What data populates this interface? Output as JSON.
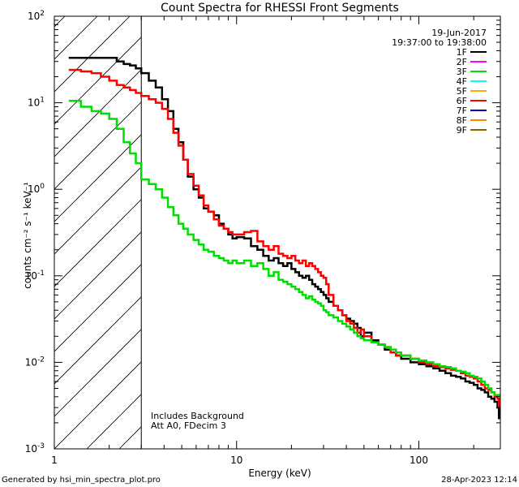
{
  "chart_data": {
    "type": "line",
    "title": "Count Spectra for RHESSI Front Segments",
    "xlabel": "Energy (keV)",
    "ylabel": "counts cm⁻² s⁻¹ keV⁻¹",
    "xscale": "log",
    "yscale": "log",
    "xlim": [
      1,
      280
    ],
    "ylim": [
      0.001,
      100
    ],
    "x_ticks": [
      {
        "value": 1,
        "label": "1"
      },
      {
        "value": 10,
        "label": "10"
      },
      {
        "value": 100,
        "label": "100"
      }
    ],
    "y_ticks": [
      {
        "value": 100,
        "label_base": "10",
        "label_exp": "2"
      },
      {
        "value": 10,
        "label_base": "10",
        "label_exp": "1"
      },
      {
        "value": 1,
        "label_base": "10",
        "label_exp": "0"
      },
      {
        "value": 0.1,
        "label_base": "10",
        "label_exp": "-1"
      },
      {
        "value": 0.01,
        "label_base": "10",
        "label_exp": "-2"
      },
      {
        "value": 0.001,
        "label_base": "10",
        "label_exp": "-3"
      }
    ],
    "date": "19-Jun-2017",
    "time_range": "19:37:00 to 19:38:00",
    "hatch_region": {
      "x_start": 1,
      "x_end": 3
    },
    "attenuator_note": "Includes Background",
    "att_line": "Att A0, FDecim 3",
    "legend_position": "top-right",
    "legend": [
      {
        "label": "1F",
        "color": "#000000"
      },
      {
        "label": "2F",
        "color": "#ff00ff"
      },
      {
        "label": "3F",
        "color": "#00dd00"
      },
      {
        "label": "4F",
        "color": "#00ffff"
      },
      {
        "label": "5F",
        "color": "#ffaa00"
      },
      {
        "label": "6F",
        "color": "#ff0000"
      },
      {
        "label": "7F",
        "color": "#0000cc"
      },
      {
        "label": "8F",
        "color": "#ff8800"
      },
      {
        "label": "9F",
        "color": "#886600"
      }
    ],
    "series": [
      {
        "name": "1F",
        "color": "#000000",
        "points": [
          [
            1.2,
            33
          ],
          [
            1.4,
            33
          ],
          [
            1.6,
            33
          ],
          [
            1.8,
            33
          ],
          [
            2.0,
            33
          ],
          [
            2.2,
            30
          ],
          [
            2.4,
            28
          ],
          [
            2.6,
            27
          ],
          [
            2.8,
            25
          ],
          [
            3.0,
            22
          ],
          [
            3.3,
            18
          ],
          [
            3.6,
            15
          ],
          [
            3.9,
            11
          ],
          [
            4.2,
            8
          ],
          [
            4.5,
            5
          ],
          [
            4.8,
            3.5
          ],
          [
            5.1,
            2.2
          ],
          [
            5.4,
            1.4
          ],
          [
            5.8,
            1.0
          ],
          [
            6.2,
            0.8
          ],
          [
            6.6,
            0.6
          ],
          [
            7.0,
            0.55
          ],
          [
            7.5,
            0.5
          ],
          [
            8.0,
            0.4
          ],
          [
            8.5,
            0.35
          ],
          [
            9.0,
            0.3
          ],
          [
            9.5,
            0.27
          ],
          [
            10,
            0.28
          ],
          [
            11,
            0.27
          ],
          [
            12,
            0.22
          ],
          [
            13,
            0.2
          ],
          [
            14,
            0.17
          ],
          [
            15,
            0.15
          ],
          [
            16,
            0.16
          ],
          [
            17,
            0.14
          ],
          [
            18,
            0.13
          ],
          [
            19,
            0.14
          ],
          [
            20,
            0.12
          ],
          [
            21,
            0.11
          ],
          [
            22,
            0.1
          ],
          [
            23,
            0.095
          ],
          [
            24,
            0.1
          ],
          [
            25,
            0.09
          ],
          [
            26,
            0.08
          ],
          [
            27,
            0.075
          ],
          [
            28,
            0.07
          ],
          [
            29,
            0.065
          ],
          [
            30,
            0.06
          ],
          [
            31,
            0.055
          ],
          [
            32,
            0.05
          ],
          [
            34,
            0.045
          ],
          [
            36,
            0.04
          ],
          [
            38,
            0.035
          ],
          [
            40,
            0.032
          ],
          [
            42,
            0.03
          ],
          [
            44,
            0.028
          ],
          [
            46,
            0.025
          ],
          [
            48,
            0.02
          ],
          [
            50,
            0.022
          ],
          [
            55,
            0.018
          ],
          [
            60,
            0.016
          ],
          [
            65,
            0.014
          ],
          [
            70,
            0.013
          ],
          [
            75,
            0.012
          ],
          [
            80,
            0.011
          ],
          [
            90,
            0.01
          ],
          [
            100,
            0.0095
          ],
          [
            110,
            0.009
          ],
          [
            120,
            0.0085
          ],
          [
            130,
            0.008
          ],
          [
            140,
            0.0075
          ],
          [
            150,
            0.007
          ],
          [
            160,
            0.0068
          ],
          [
            170,
            0.0065
          ],
          [
            180,
            0.006
          ],
          [
            190,
            0.0058
          ],
          [
            200,
            0.0055
          ],
          [
            210,
            0.005
          ],
          [
            220,
            0.0048
          ],
          [
            230,
            0.0045
          ],
          [
            240,
            0.004
          ],
          [
            250,
            0.0038
          ],
          [
            260,
            0.0035
          ],
          [
            270,
            0.003
          ],
          [
            275,
            0.0022
          ]
        ]
      },
      {
        "name": "6F",
        "color": "#ff0000",
        "points": [
          [
            1.2,
            24
          ],
          [
            1.4,
            23
          ],
          [
            1.6,
            22
          ],
          [
            1.8,
            20
          ],
          [
            2.0,
            18
          ],
          [
            2.2,
            16
          ],
          [
            2.4,
            15
          ],
          [
            2.6,
            14
          ],
          [
            2.8,
            13
          ],
          [
            3.0,
            12
          ],
          [
            3.3,
            11
          ],
          [
            3.6,
            10
          ],
          [
            3.9,
            8.5
          ],
          [
            4.2,
            6.5
          ],
          [
            4.5,
            4.5
          ],
          [
            4.8,
            3.2
          ],
          [
            5.1,
            2.2
          ],
          [
            5.4,
            1.5
          ],
          [
            5.8,
            1.1
          ],
          [
            6.2,
            0.85
          ],
          [
            6.6,
            0.65
          ],
          [
            7.0,
            0.55
          ],
          [
            7.5,
            0.45
          ],
          [
            8.0,
            0.38
          ],
          [
            8.5,
            0.35
          ],
          [
            9.0,
            0.32
          ],
          [
            9.5,
            0.3
          ],
          [
            10,
            0.3
          ],
          [
            11,
            0.32
          ],
          [
            12,
            0.33
          ],
          [
            13,
            0.25
          ],
          [
            14,
            0.22
          ],
          [
            15,
            0.2
          ],
          [
            16,
            0.22
          ],
          [
            17,
            0.18
          ],
          [
            18,
            0.17
          ],
          [
            19,
            0.16
          ],
          [
            20,
            0.17
          ],
          [
            21,
            0.15
          ],
          [
            22,
            0.14
          ],
          [
            23,
            0.15
          ],
          [
            24,
            0.13
          ],
          [
            25,
            0.14
          ],
          [
            26,
            0.13
          ],
          [
            27,
            0.12
          ],
          [
            28,
            0.11
          ],
          [
            29,
            0.1
          ],
          [
            30,
            0.095
          ],
          [
            31,
            0.08
          ],
          [
            32,
            0.06
          ],
          [
            34,
            0.045
          ],
          [
            36,
            0.04
          ],
          [
            38,
            0.035
          ],
          [
            40,
            0.03
          ],
          [
            42,
            0.028
          ],
          [
            44,
            0.025
          ],
          [
            46,
            0.022
          ],
          [
            48,
            0.024
          ],
          [
            50,
            0.02
          ],
          [
            55,
            0.017
          ],
          [
            60,
            0.016
          ],
          [
            65,
            0.015
          ],
          [
            70,
            0.013
          ],
          [
            75,
            0.012
          ],
          [
            80,
            0.012
          ],
          [
            90,
            0.011
          ],
          [
            100,
            0.01
          ],
          [
            110,
            0.0095
          ],
          [
            120,
            0.009
          ],
          [
            130,
            0.0088
          ],
          [
            140,
            0.0085
          ],
          [
            150,
            0.0082
          ],
          [
            160,
            0.008
          ],
          [
            170,
            0.0075
          ],
          [
            180,
            0.007
          ],
          [
            190,
            0.0068
          ],
          [
            200,
            0.0065
          ],
          [
            210,
            0.006
          ],
          [
            220,
            0.0055
          ],
          [
            230,
            0.005
          ],
          [
            240,
            0.0048
          ],
          [
            250,
            0.0045
          ],
          [
            260,
            0.004
          ],
          [
            270,
            0.0038
          ],
          [
            275,
            0.003
          ]
        ]
      },
      {
        "name": "3F",
        "color": "#00dd00",
        "points": [
          [
            1.2,
            10.5
          ],
          [
            1.4,
            9
          ],
          [
            1.6,
            8
          ],
          [
            1.8,
            7.5
          ],
          [
            2.0,
            6.5
          ],
          [
            2.2,
            5
          ],
          [
            2.4,
            3.5
          ],
          [
            2.6,
            2.6
          ],
          [
            2.8,
            2.0
          ],
          [
            3.0,
            1.3
          ],
          [
            3.3,
            1.15
          ],
          [
            3.6,
            1.0
          ],
          [
            3.9,
            0.8
          ],
          [
            4.2,
            0.62
          ],
          [
            4.5,
            0.5
          ],
          [
            4.8,
            0.4
          ],
          [
            5.1,
            0.35
          ],
          [
            5.4,
            0.3
          ],
          [
            5.8,
            0.26
          ],
          [
            6.2,
            0.23
          ],
          [
            6.6,
            0.2
          ],
          [
            7.0,
            0.19
          ],
          [
            7.5,
            0.17
          ],
          [
            8.0,
            0.16
          ],
          [
            8.5,
            0.15
          ],
          [
            9.0,
            0.14
          ],
          [
            9.5,
            0.15
          ],
          [
            10,
            0.14
          ],
          [
            11,
            0.15
          ],
          [
            12,
            0.13
          ],
          [
            13,
            0.14
          ],
          [
            14,
            0.12
          ],
          [
            15,
            0.1
          ],
          [
            16,
            0.11
          ],
          [
            17,
            0.09
          ],
          [
            18,
            0.085
          ],
          [
            19,
            0.08
          ],
          [
            20,
            0.075
          ],
          [
            21,
            0.07
          ],
          [
            22,
            0.065
          ],
          [
            23,
            0.06
          ],
          [
            24,
            0.055
          ],
          [
            25,
            0.058
          ],
          [
            26,
            0.053
          ],
          [
            27,
            0.05
          ],
          [
            28,
            0.048
          ],
          [
            29,
            0.045
          ],
          [
            30,
            0.04
          ],
          [
            31,
            0.038
          ],
          [
            32,
            0.035
          ],
          [
            34,
            0.033
          ],
          [
            36,
            0.03
          ],
          [
            38,
            0.028
          ],
          [
            40,
            0.026
          ],
          [
            42,
            0.024
          ],
          [
            44,
            0.022
          ],
          [
            46,
            0.02
          ],
          [
            48,
            0.019
          ],
          [
            50,
            0.018
          ],
          [
            55,
            0.017
          ],
          [
            60,
            0.016
          ],
          [
            65,
            0.015
          ],
          [
            70,
            0.014
          ],
          [
            75,
            0.013
          ],
          [
            80,
            0.012
          ],
          [
            90,
            0.011
          ],
          [
            100,
            0.0105
          ],
          [
            110,
            0.01
          ],
          [
            120,
            0.0095
          ],
          [
            130,
            0.009
          ],
          [
            140,
            0.0088
          ],
          [
            150,
            0.0085
          ],
          [
            160,
            0.008
          ],
          [
            170,
            0.0078
          ],
          [
            180,
            0.0075
          ],
          [
            190,
            0.007
          ],
          [
            200,
            0.0068
          ],
          [
            210,
            0.0065
          ],
          [
            220,
            0.006
          ],
          [
            230,
            0.0055
          ],
          [
            240,
            0.005
          ],
          [
            250,
            0.0045
          ],
          [
            260,
            0.0042
          ],
          [
            270,
            0.0042
          ],
          [
            275,
            0.004
          ]
        ]
      }
    ]
  },
  "footer": {
    "generated_by": "Generated by hsi_min_spectra_plot.pro",
    "timestamp": "28-Apr-2023 12:14"
  }
}
